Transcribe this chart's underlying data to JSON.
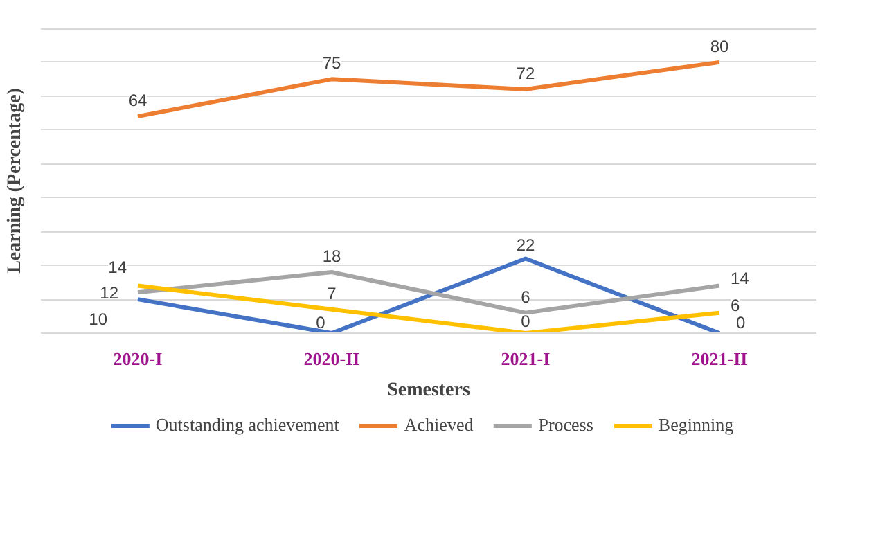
{
  "chart_data": {
    "type": "line",
    "xlabel": "Semesters",
    "ylabel": "Learning (Percentage)",
    "categories": [
      "2020-I",
      "2020-II",
      "2021-I",
      "2021-II"
    ],
    "series": [
      {
        "name": "Outstanding achievement",
        "color": "#4472c4",
        "values": [
          10,
          0,
          22,
          0
        ]
      },
      {
        "name": "Achieved",
        "color": "#ed7d31",
        "values": [
          64,
          75,
          72,
          80
        ]
      },
      {
        "name": "Process",
        "color": "#a5a5a5",
        "values": [
          12,
          18,
          6,
          14
        ]
      },
      {
        "name": "Beginning",
        "color": "#ffc000",
        "values": [
          14,
          7,
          0,
          6
        ]
      }
    ],
    "ylim": [
      0,
      90
    ],
    "yticks": [
      {
        "value": 0,
        "label": null
      },
      {
        "value": 10,
        "label": null
      },
      {
        "value": 20,
        "label": null
      },
      {
        "value": 30,
        "label": null
      },
      {
        "value": 40,
        "label": null
      },
      {
        "value": 50,
        "label": null
      },
      {
        "value": 60,
        "label": null
      },
      {
        "value": 70,
        "label": null
      },
      {
        "value": 80,
        "label": null
      },
      {
        "value": 90,
        "label": null
      }
    ],
    "tick_labels": "x",
    "grid": "y",
    "legend": "bottom",
    "data_labels": true,
    "marker": "none",
    "line_style": "solid"
  }
}
